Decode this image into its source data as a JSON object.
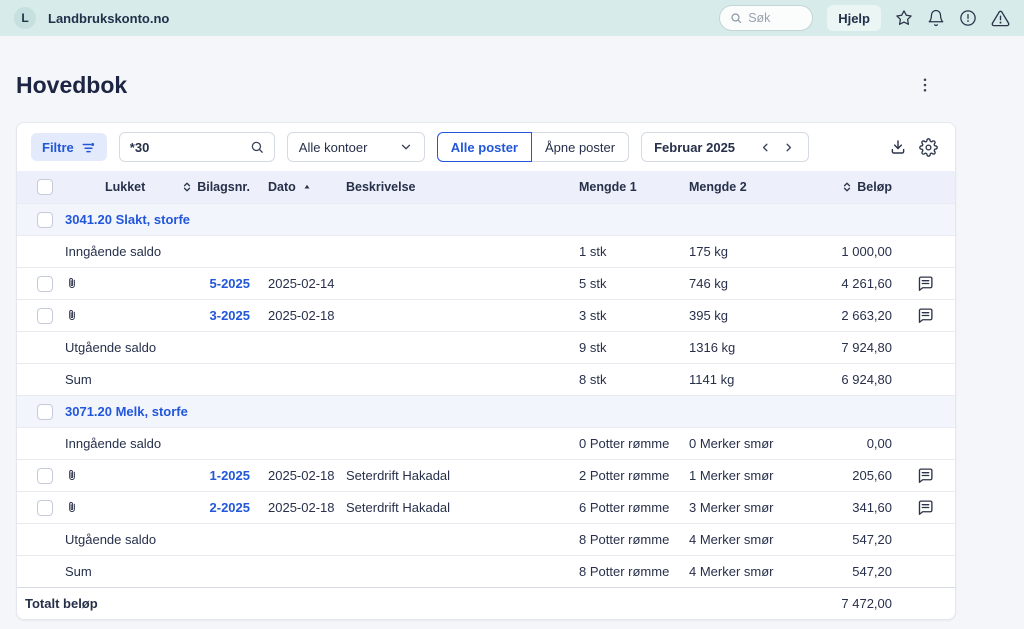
{
  "topbar": {
    "logo_letter": "L",
    "brand": "Landbrukskonto.no",
    "search_placeholder": "Søk",
    "help_label": "Hjelp"
  },
  "page": {
    "title": "Hovedbok"
  },
  "toolbar": {
    "filter_label": "Filtre",
    "search_value": "*30",
    "account_filter_value": "Alle kontoer",
    "view_toggle": {
      "options": [
        "Alle poster",
        "Åpne poster"
      ],
      "selected": "Alle poster"
    },
    "period_value": "Februar 2025"
  },
  "table": {
    "headers": {
      "lukket": "Lukket",
      "bilagsnr": "Bilagsnr.",
      "dato": "Dato",
      "beskrivelse": "Beskrivelse",
      "mengde1": "Mengde 1",
      "mengde2": "Mengde 2",
      "belop": "Beløp"
    },
    "sort": {
      "column": "Dato",
      "direction": "asc"
    },
    "groups": [
      {
        "account": "3041.20 Slakt, storfe",
        "rows": [
          {
            "type": "saldo",
            "label": "Inngående saldo",
            "mengde1": "1 stk",
            "mengde2": "175 kg",
            "belop": "1 000,00"
          },
          {
            "type": "entry",
            "attachment": true,
            "bilagsnr": "5-2025",
            "dato": "2025-02-14",
            "beskrivelse": "",
            "mengde1": "5 stk",
            "mengde2": "746 kg",
            "belop": "4 261,60",
            "comment": true
          },
          {
            "type": "entry",
            "attachment": true,
            "bilagsnr": "3-2025",
            "dato": "2025-02-18",
            "beskrivelse": "",
            "mengde1": "3 stk",
            "mengde2": "395 kg",
            "belop": "2 663,20",
            "comment": true
          },
          {
            "type": "saldo",
            "label": "Utgående saldo",
            "mengde1": "9 stk",
            "mengde2": "1316 kg",
            "belop": "7 924,80"
          },
          {
            "type": "saldo",
            "label": "Sum",
            "mengde1": "8 stk",
            "mengde2": "1141 kg",
            "belop": "6 924,80"
          }
        ]
      },
      {
        "account": "3071.20 Melk, storfe",
        "rows": [
          {
            "type": "saldo",
            "label": "Inngående saldo",
            "mengde1": "0 Potter rømme",
            "mengde2": "0 Merker smør",
            "belop": "0,00"
          },
          {
            "type": "entry",
            "attachment": true,
            "bilagsnr": "1-2025",
            "dato": "2025-02-18",
            "beskrivelse": "Seterdrift Hakadal",
            "mengde1": "2 Potter rømme",
            "mengde2": "1 Merker smør",
            "belop": "205,60",
            "comment": true
          },
          {
            "type": "entry",
            "attachment": true,
            "bilagsnr": "2-2025",
            "dato": "2025-02-18",
            "beskrivelse": "Seterdrift Hakadal",
            "mengde1": "6 Potter rømme",
            "mengde2": "3 Merker smør",
            "belop": "341,60",
            "comment": true
          },
          {
            "type": "saldo",
            "label": "Utgående saldo",
            "mengde1": "8 Potter rømme",
            "mengde2": "4 Merker smør",
            "belop": "547,20"
          },
          {
            "type": "saldo",
            "label": "Sum",
            "mengde1": "8 Potter rømme",
            "mengde2": "4 Merker smør",
            "belop": "547,20"
          }
        ]
      }
    ],
    "total": {
      "label": "Totalt beløp",
      "belop": "7 472,00"
    }
  },
  "icons": {
    "search": "magnifier",
    "filter": "filter-sliders-with-dot",
    "chevron_down": "chevron-down",
    "chevron_left": "chevron-left",
    "chevron_right": "chevron-right",
    "download": "download-tray-arrow",
    "settings": "gear",
    "star": "star-outline",
    "bell": "bell-outline",
    "info": "alert-circle",
    "warning": "alert-triangle",
    "more": "kebab-vertical-dots",
    "sort": "double-chevron-sort",
    "sort_asc": "triangle-up",
    "attachment": "paperclip",
    "comment": "speech-bubble-lines"
  },
  "colors": {
    "accent_blue": "#2257d9",
    "topbar_bg": "#d7ebea",
    "header_row_bg": "#edf0fa",
    "group_row_bg": "#f3f5fd",
    "page_bg": "#f5f6f9"
  }
}
